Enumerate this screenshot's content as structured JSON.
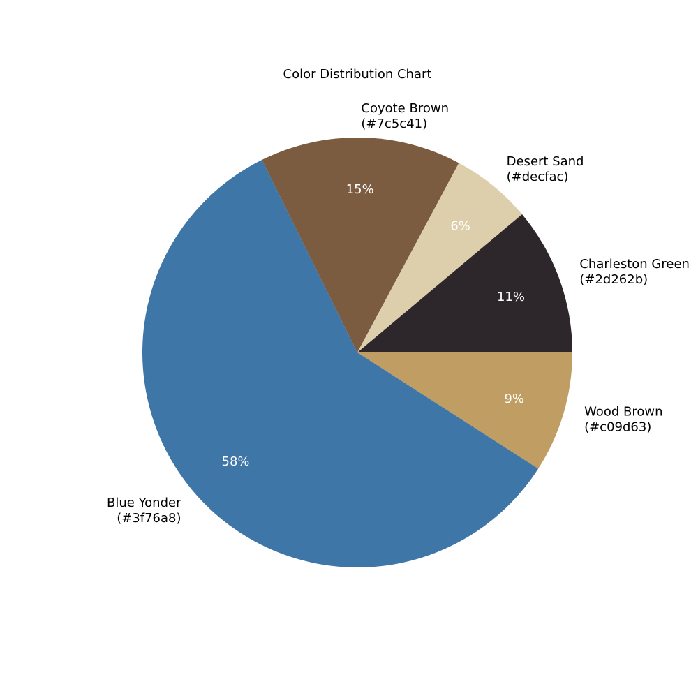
{
  "chart_data": {
    "type": "pie",
    "title": "Color Distribution Chart",
    "start_angle_deg": 0,
    "direction": "clockwise",
    "slices": [
      {
        "name": "Wood Brown",
        "code": "(#c09d63)",
        "value": 9,
        "pct_label": "9%",
        "color": "#c09d63"
      },
      {
        "name": "Blue Yonder",
        "code": "(#3f76a8)",
        "value": 58,
        "pct_label": "58%",
        "color": "#3f76a8"
      },
      {
        "name": "Coyote Brown",
        "code": "(#7c5c41)",
        "value": 15,
        "pct_label": "15%",
        "color": "#7c5c41"
      },
      {
        "name": "Desert Sand",
        "code": "(#decfac)",
        "value": 6,
        "pct_label": "6%",
        "color": "#decfac"
      },
      {
        "name": "Charleston Green",
        "code": "(#2d262b)",
        "value": 11,
        "pct_label": "11%",
        "color": "#2d262b"
      }
    ]
  }
}
